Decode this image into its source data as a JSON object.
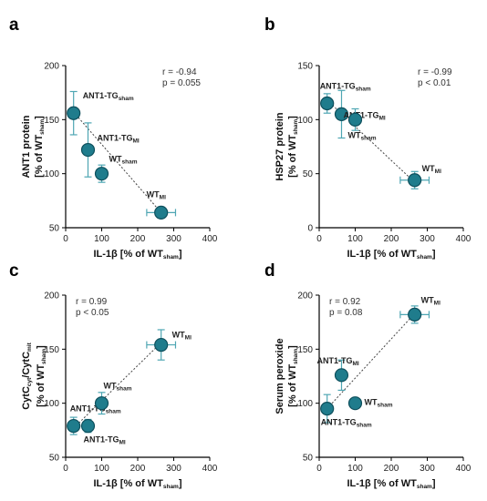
{
  "colors": {
    "marker_fill": "#1f7c8c",
    "marker_stroke": "#0e4f5c",
    "error_bar": "#4ea6b3",
    "axis": "#000000",
    "fit_line": "#444444"
  },
  "chart_data": [
    {
      "type": "scatter",
      "panel": "a",
      "xlabel": {
        "main": "IL-1β [% of WT",
        "sub": "sham",
        "tail": "]"
      },
      "ylabel": {
        "line1": "ANT1 protein",
        "line2_main": "[% of WT",
        "line2_sub": "sham",
        "line2_tail": "]"
      },
      "xlim": [
        0,
        400
      ],
      "ylim": [
        50,
        200
      ],
      "xticks": [
        0,
        100,
        200,
        300,
        400
      ],
      "yticks": [
        50,
        100,
        150,
        200
      ],
      "annotation": [
        "r = -0.94",
        "p =  0.055"
      ],
      "fit_line": [
        [
          22,
          157
        ],
        [
          265,
          64
        ]
      ],
      "points": [
        {
          "x": 22,
          "y": 156,
          "xerr": 5,
          "yerr": 20,
          "label_main": "ANT1-TG",
          "label_sub": "sham"
        },
        {
          "x": 62,
          "y": 122,
          "xerr": 10,
          "yerr": 25,
          "label_main": "ANT1-TG",
          "label_sub": "MI"
        },
        {
          "x": 100,
          "y": 100,
          "xerr": 15,
          "yerr": 8,
          "label_main": "WT",
          "label_sub": "sham"
        },
        {
          "x": 265,
          "y": 64,
          "xerr": 40,
          "yerr": 5,
          "label_main": "WT",
          "label_sub": "MI"
        }
      ]
    },
    {
      "type": "scatter",
      "panel": "b",
      "xlabel": {
        "main": "IL-1β [% of WT",
        "sub": "sham",
        "tail": "]"
      },
      "ylabel": {
        "line1": "HSP27 protein",
        "line2_main": "[% of WT",
        "line2_sub": "sham",
        "line2_tail": "]"
      },
      "xlim": [
        0,
        400
      ],
      "ylim": [
        0,
        150
      ],
      "xticks": [
        0,
        100,
        200,
        300,
        400
      ],
      "yticks": [
        0,
        50,
        100,
        150
      ],
      "annotation": [
        "r = -0.99",
        "p < 0.01"
      ],
      "fit_line": [
        [
          22,
          118
        ],
        [
          265,
          42
        ]
      ],
      "points": [
        {
          "x": 22,
          "y": 115,
          "xerr": 5,
          "yerr": 9,
          "label_main": "ANT1-TG",
          "label_sub": "sham"
        },
        {
          "x": 62,
          "y": 105,
          "xerr": 10,
          "yerr": 22,
          "label_main": "ANT1-TG",
          "label_sub": "MI"
        },
        {
          "x": 100,
          "y": 100,
          "xerr": 15,
          "yerr": 10,
          "label_main": "WT",
          "label_sub": "sham"
        },
        {
          "x": 265,
          "y": 44,
          "xerr": 40,
          "yerr": 8,
          "label_main": "WT",
          "label_sub": "MI"
        }
      ]
    },
    {
      "type": "scatter",
      "panel": "c",
      "xlabel": {
        "main": "IL-1β [% of WT",
        "sub": "sham",
        "tail": "]"
      },
      "ylabel": {
        "line1_main": "CytC",
        "line1_sub1": "cyt",
        "line1_mid": "/CytC",
        "line1_sub2": "mit",
        "line2_main": "[% of WT",
        "line2_sub": "sham",
        "line2_tail": "]"
      },
      "xlim": [
        0,
        400
      ],
      "ylim": [
        50,
        200
      ],
      "xticks": [
        0,
        100,
        200,
        300,
        400
      ],
      "yticks": [
        50,
        100,
        150,
        200
      ],
      "annotation": [
        "r = 0.99",
        "p < 0.05"
      ],
      "fit_line": [
        [
          22,
          77
        ],
        [
          265,
          156
        ]
      ],
      "points": [
        {
          "x": 22,
          "y": 79,
          "xerr": 5,
          "yerr": 8,
          "label_main": "ANT1-TG",
          "label_sub": "sham"
        },
        {
          "x": 62,
          "y": 79,
          "xerr": 10,
          "yerr": 6,
          "label_main": "ANT1-TG",
          "label_sub": "MI"
        },
        {
          "x": 100,
          "y": 100,
          "xerr": 15,
          "yerr": 10,
          "label_main": "WT",
          "label_sub": "sham"
        },
        {
          "x": 265,
          "y": 154,
          "xerr": 40,
          "yerr": 14,
          "label_main": "WT",
          "label_sub": "MI"
        }
      ]
    },
    {
      "type": "scatter",
      "panel": "d",
      "xlabel": {
        "main": "IL-1β [% of WT",
        "sub": "sham",
        "tail": "]"
      },
      "ylabel": {
        "line1": "Serum peroxide",
        "line2_main": "[% of WT",
        "line2_sub": "sham",
        "line2_tail": "]"
      },
      "xlim": [
        0,
        400
      ],
      "ylim": [
        50,
        200
      ],
      "xticks": [
        0,
        100,
        200,
        300,
        400
      ],
      "yticks": [
        50,
        100,
        150,
        200
      ],
      "annotation": [
        "r = 0.92",
        "p = 0.08"
      ],
      "fit_line": [
        [
          22,
          95
        ],
        [
          265,
          183
        ]
      ],
      "points": [
        {
          "x": 22,
          "y": 95,
          "xerr": 5,
          "yerr": 13,
          "label_main": "ANT1-TG",
          "label_sub": "sham"
        },
        {
          "x": 62,
          "y": 126,
          "xerr": 10,
          "yerr": 14,
          "label_main": "ANT1-TG",
          "label_sub": "MI"
        },
        {
          "x": 100,
          "y": 100,
          "xerr": 15,
          "yerr": 4,
          "label_main": "WT",
          "label_sub": "sham"
        },
        {
          "x": 265,
          "y": 182,
          "xerr": 40,
          "yerr": 8,
          "label_main": "WT",
          "label_sub": "MI"
        }
      ]
    }
  ]
}
